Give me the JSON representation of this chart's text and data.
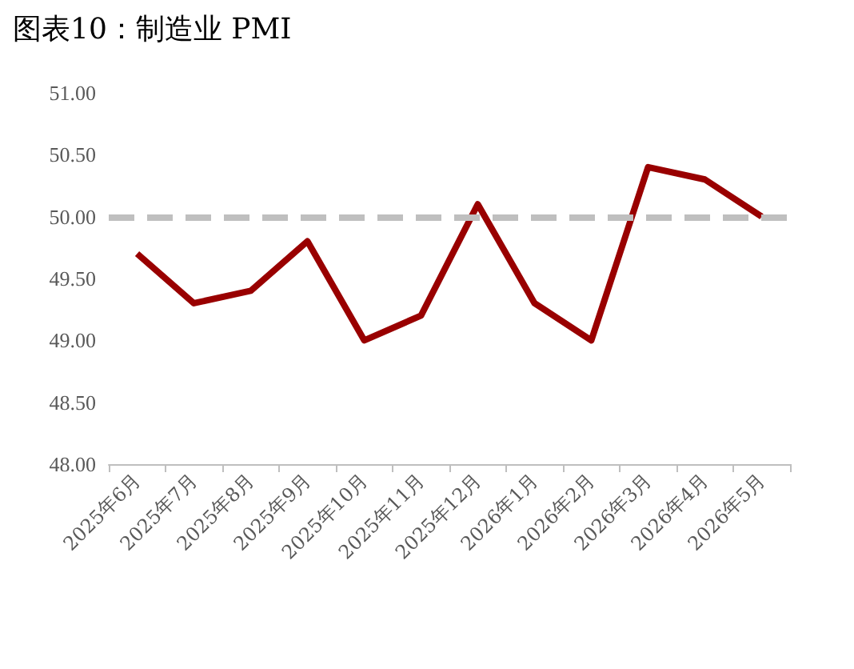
{
  "chart_data": {
    "type": "line",
    "title": "图表10：制造业 PMI",
    "categories": [
      "2025年6月",
      "2025年7月",
      "2025年8月",
      "2025年9月",
      "2025年10月",
      "2025年11月",
      "2025年12月",
      "2026年1月",
      "2026年2月",
      "2026年3月",
      "2026年4月",
      "2026年5月"
    ],
    "series": [
      {
        "color": "#990000",
        "values": [
          49.7,
          49.3,
          49.4,
          49.8,
          49.0,
          49.2,
          50.1,
          49.3,
          49.0,
          50.4,
          50.3,
          50.0
        ]
      }
    ],
    "ylim": [
      48,
      51
    ],
    "yticks": [
      {
        "value": 48,
        "label": "48.00"
      },
      {
        "value": 48.5,
        "label": "48.50"
      },
      {
        "value": 49,
        "label": "49.00"
      },
      {
        "value": 49.5,
        "label": "49.50"
      },
      {
        "value": 50,
        "label": "50.00"
      },
      {
        "value": 50.5,
        "label": "50.50"
      },
      {
        "value": 51,
        "label": "51.00"
      }
    ],
    "ref_lines": [
      {
        "axis": "y",
        "value": 50,
        "color": "#bfbfbf",
        "line_style": "dashed"
      }
    ],
    "marker": "none",
    "line_style": "solid"
  }
}
